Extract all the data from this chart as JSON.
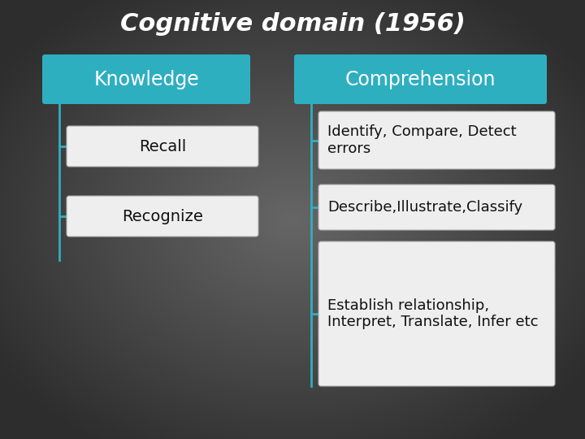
{
  "title": "Cognitive domain (1956)",
  "title_fontsize": 22,
  "title_color": "#ffffff",
  "title_style": "italic",
  "title_weight": "bold",
  "teal_color": "#2eafc0",
  "white_box_color": "#eeeeee",
  "white_box_text_color": "#111111",
  "teal_text_color": "#ffffff",
  "left_header": "Knowledge",
  "right_header": "Comprehension",
  "left_items": [
    "Recall",
    "Recognize"
  ],
  "right_items": [
    "Identify, Compare, Detect\nerrors",
    "Describe,Illustrate,Classify",
    "Establish relationship,\nInterpret, Translate, Infer etc"
  ],
  "header_fontsize": 17,
  "item_fontsize": 13,
  "figsize": [
    7.2,
    5.4
  ],
  "dpi": 100,
  "bg_outer": "#2a2a2a",
  "bg_inner": "#606060"
}
